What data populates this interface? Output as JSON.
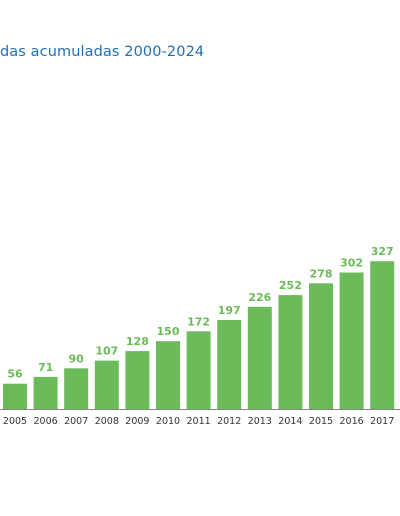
{
  "colors": {
    "title": "#1f6fb5",
    "bar": "#6cbb5a",
    "value_label": "#6cbb5a",
    "axis": "#888888",
    "tick": "#333333"
  },
  "chart_data": {
    "type": "bar",
    "title": "das acumuladas 2000-2024",
    "categories": [
      "2005",
      "2006",
      "2007",
      "2008",
      "2009",
      "2010",
      "2011",
      "2012",
      "2013",
      "2014",
      "2015",
      "2016",
      "2017"
    ],
    "values": [
      56,
      71,
      90,
      107,
      128,
      150,
      172,
      197,
      226,
      252,
      278,
      302,
      327
    ],
    "xlabel": "",
    "ylabel": "",
    "ylim": [
      0,
      340
    ],
    "grid": false,
    "legend": "none",
    "data_labels": true
  }
}
